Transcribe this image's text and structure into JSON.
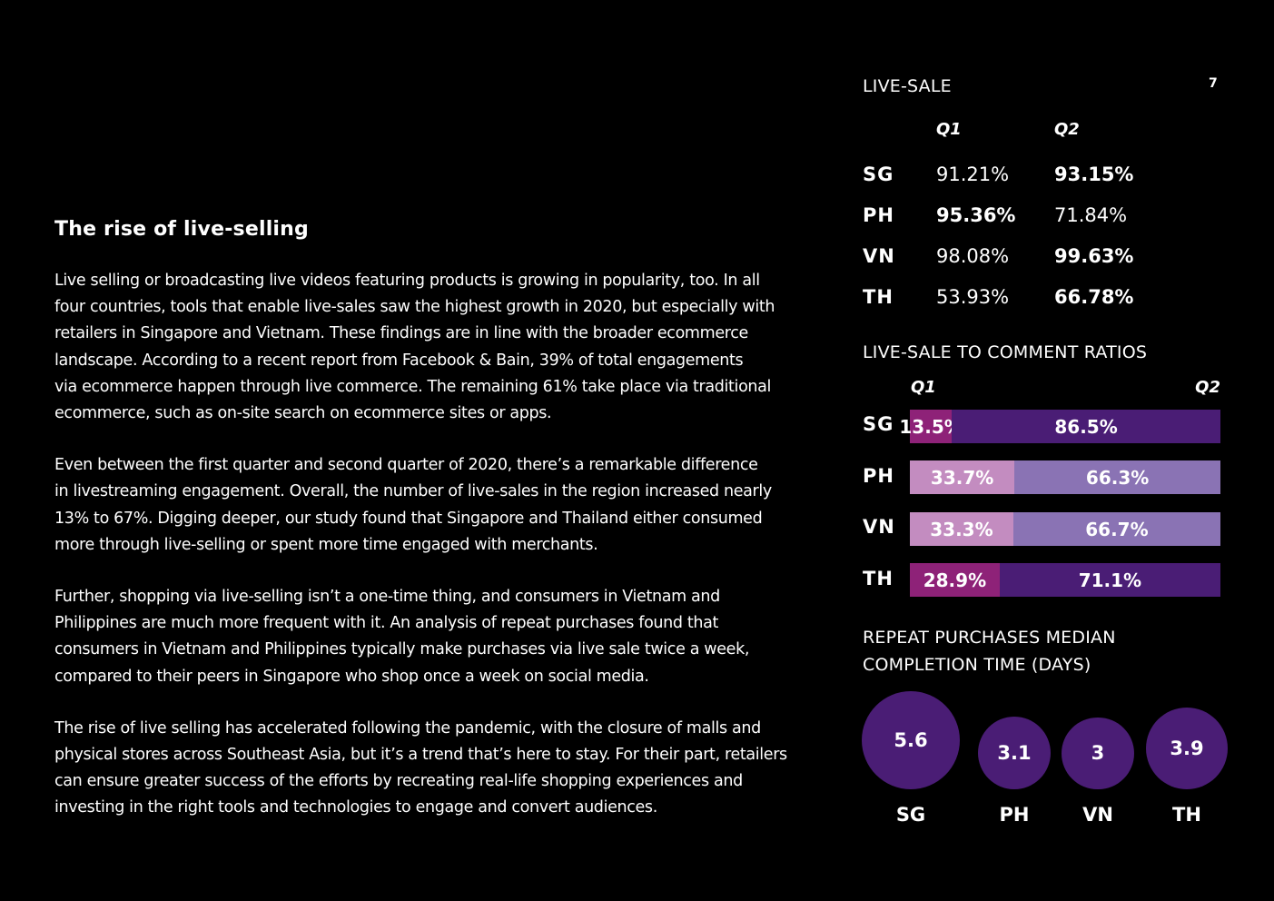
{
  "page_number": "7",
  "article": {
    "title": "The rise of live-selling",
    "paragraphs": [
      "Live selling or broadcasting live videos featuring products is growing in popularity, too. In all\nfour countries, tools that enable live-sales saw the highest growth in 2020, but especially with\nretailers in Singapore and Vietnam. These findings are in line with the broader ecommerce\nlandscape. According to a recent report from Facebook & Bain, 39% of total engagements\nvia ecommerce happen through live commerce. The remaining 61% take place via traditional\necommerce, such as on-site search on ecommerce sites or apps.",
      "Even between the first quarter and second quarter of 2020, there’s a remarkable difference\nin livestreaming engagement. Overall, the number of live-sales in the region increased nearly\n13% to 67%. Digging deeper, our study found that Singapore and Thailand either consumed\nmore through live-selling or spent more time engaged with merchants.",
      "Further, shopping via live-selling isn’t a one-time thing, and consumers in Vietnam and\nPhilippines are much more frequent with it. An analysis of repeat purchases found that\nconsumers in Vietnam and Philippines typically make purchases via live sale twice a week,\ncompared to their peers in Singapore who shop once a week on social media.",
      "The rise of live selling has accelerated following the pandemic, with the closure of malls and\nphysical stores across Southeast Asia, but it’s a trend that’s here to stay. For their part, retailers\ncan ensure greater success of the efforts by recreating real-life shopping experiences and\ninvesting in the right tools and technologies to engage and convert audiences."
    ]
  },
  "live_sale": {
    "title": "LIVE-SALE",
    "headers": [
      "Q1",
      "Q2"
    ],
    "rows": [
      {
        "country": "SG",
        "q1": "91.21%",
        "q2": "93.15%",
        "bold": "q2"
      },
      {
        "country": "PH",
        "q1": "95.36%",
        "q2": "71.84%",
        "bold": "q1"
      },
      {
        "country": "VN",
        "q1": "98.08%",
        "q2": "99.63%",
        "bold": "q2"
      },
      {
        "country": "TH",
        "q1": "53.93%",
        "q2": "66.78%",
        "bold": "q2"
      }
    ]
  },
  "ratios": {
    "title": "LIVE-SALE TO COMMENT RATIOS",
    "headers": [
      "Q1",
      "Q2"
    ],
    "rows": [
      {
        "country": "SG",
        "q1": 13.5,
        "q2": 86.5,
        "q1_label": "13.5%",
        "q2_label": "86.5%",
        "q1_color": "#8e2278",
        "q2_color": "#4a1d75"
      },
      {
        "country": "PH",
        "q1": 33.7,
        "q2": 66.3,
        "q1_label": "33.7%",
        "q2_label": "66.3%",
        "q1_color": "#c38cc0",
        "q2_color": "#8a73b4"
      },
      {
        "country": "VN",
        "q1": 33.3,
        "q2": 66.7,
        "q1_label": "33.3%",
        "q2_label": "66.7%",
        "q1_color": "#c38cc0",
        "q2_color": "#8a73b4"
      },
      {
        "country": "TH",
        "q1": 28.9,
        "q2": 71.1,
        "q1_label": "28.9%",
        "q2_label": "71.1%",
        "q1_color": "#8e2278",
        "q2_color": "#4a1d75"
      }
    ]
  },
  "repeat": {
    "title": "REPEAT PURCHASES MEDIAN\nCOMPLETION TIME (DAYS)",
    "color": "#4a1d75",
    "items": [
      {
        "country": "SG",
        "value": 5.6,
        "label": "5.6"
      },
      {
        "country": "PH",
        "value": 3.1,
        "label": "3.1"
      },
      {
        "country": "VN",
        "value": 3,
        "label": "3"
      },
      {
        "country": "TH",
        "value": 3.9,
        "label": "3.9"
      }
    ]
  }
}
